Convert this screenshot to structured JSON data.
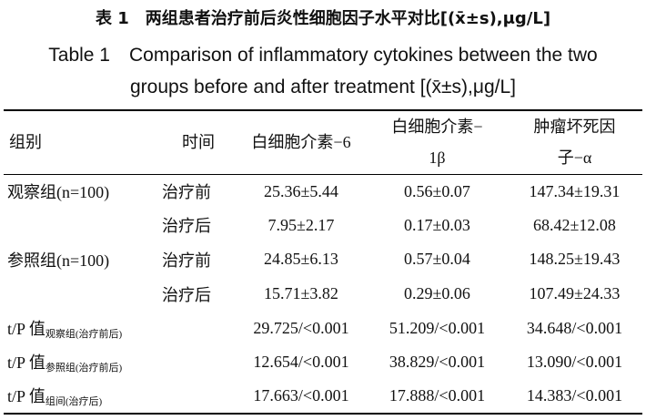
{
  "title_cn": "表 1　两组患者治疗前后炎性细胞因子水平对比[(x̄±s),μg/L]",
  "title_en": [
    "Table 1　Comparison of inflammatory cytokines between the two",
    "groups before and after treatment [(x̄±s),μg/L]"
  ],
  "table": {
    "header": [
      [
        "组别"
      ],
      [
        "时间"
      ],
      [
        "白细胞介素−6"
      ],
      [
        "白细胞介素−",
        "1β"
      ],
      [
        "肿瘤坏死因",
        "子−α"
      ]
    ],
    "rows": [
      {
        "group": "观察组(n=100)",
        "time": "治疗前",
        "values": [
          "25.36±5.44",
          "0.56±0.07",
          "147.34±19.31"
        ]
      },
      {
        "time": "治疗后",
        "values": [
          "7.95±2.17",
          "0.17±0.03",
          "68.42±12.08"
        ]
      },
      {
        "group": "参照组(n=100)",
        "time": "治疗前",
        "values": [
          "24.85±6.13",
          "0.57±0.04",
          "148.25±19.43"
        ]
      },
      {
        "time": "治疗后",
        "values": [
          "15.71±3.82",
          "0.29±0.06",
          "107.49±24.33"
        ]
      },
      {
        "label": "t/P 值",
        "sub": "观察组(治疗前后)",
        "values": [
          "29.725/<0.001",
          "51.209/<0.001",
          "34.648/<0.001"
        ]
      },
      {
        "label": "t/P 值",
        "sub": "参照组(治疗前后)",
        "values": [
          "12.654/<0.001",
          "38.829/<0.001",
          "13.090/<0.001"
        ]
      },
      {
        "label": "t/P 值",
        "sub": "组间(治疗后)",
        "values": [
          "17.663/<0.001",
          "17.888/<0.001",
          "14.383/<0.001"
        ]
      }
    ]
  }
}
